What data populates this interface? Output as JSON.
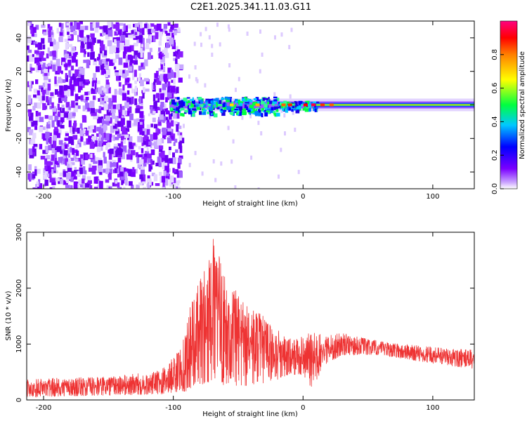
{
  "title": "C2E1.2025.341.11.03.G11",
  "chart_data": [
    {
      "type": "heatmap",
      "xlabel": "Height of straight line (km)",
      "ylabel": "Frequency (Hz)",
      "xlim": [
        -213,
        132
      ],
      "ylim": [
        -50,
        50
      ],
      "xticks": [
        -200,
        -100,
        0,
        100
      ],
      "yticks": [
        -40,
        -20,
        0,
        20,
        40
      ],
      "xtick_labels": [
        "-200",
        "-100",
        "0",
        "100"
      ],
      "ytick_labels": [
        "-40",
        "-20",
        "0",
        "20",
        "40"
      ],
      "noise_region_x": [
        -213,
        -95
      ],
      "signal_start_x": -103,
      "colorbar": {
        "label": "Normalized spectral amplitude",
        "range": [
          0,
          1
        ],
        "ticks": [
          0.0,
          0.2,
          0.4,
          0.6,
          0.8
        ],
        "tick_labels": [
          "0.0",
          "0.2",
          "0.4",
          "0.6",
          "0.8"
        ],
        "colors": [
          "#ffffff",
          "#7a00ff",
          "#0000ff",
          "#00ffff",
          "#00ff00",
          "#ffff00",
          "#ff8000",
          "#ff0000",
          "#ff0080"
        ]
      }
    },
    {
      "type": "line",
      "xlabel": "Height of straight line (km)",
      "ylabel": "SNR (10 * v/v)",
      "xlim": [
        -213,
        132
      ],
      "ylim": [
        0,
        3000
      ],
      "xticks": [
        -200,
        -100,
        0,
        100
      ],
      "yticks": [
        0,
        1000,
        2000,
        3000
      ],
      "xtick_labels": [
        "-200",
        "-100",
        "0",
        "100"
      ],
      "ytick_labels": [
        "0",
        "1000",
        "2000",
        "3000"
      ],
      "color": "#ee3333",
      "envelope": [
        {
          "x": -213,
          "low": 50,
          "high": 380
        },
        {
          "x": -150,
          "low": 80,
          "high": 420
        },
        {
          "x": -110,
          "low": 100,
          "high": 520
        },
        {
          "x": -95,
          "low": 150,
          "high": 900
        },
        {
          "x": -85,
          "low": 150,
          "high": 1900
        },
        {
          "x": -75,
          "low": 300,
          "high": 2400
        },
        {
          "x": -68,
          "low": 350,
          "high": 3000
        },
        {
          "x": -60,
          "low": 250,
          "high": 2200
        },
        {
          "x": -45,
          "low": 250,
          "high": 1800
        },
        {
          "x": -30,
          "low": 300,
          "high": 1500
        },
        {
          "x": -20,
          "low": 350,
          "high": 1300
        },
        {
          "x": -10,
          "low": 450,
          "high": 1100
        },
        {
          "x": 0,
          "low": 450,
          "high": 1150
        },
        {
          "x": 8,
          "low": 150,
          "high": 1250
        },
        {
          "x": 15,
          "low": 600,
          "high": 1150
        },
        {
          "x": 30,
          "low": 800,
          "high": 1200
        },
        {
          "x": 60,
          "low": 800,
          "high": 1050
        },
        {
          "x": 100,
          "low": 650,
          "high": 950
        },
        {
          "x": 132,
          "low": 550,
          "high": 900
        }
      ]
    }
  ]
}
